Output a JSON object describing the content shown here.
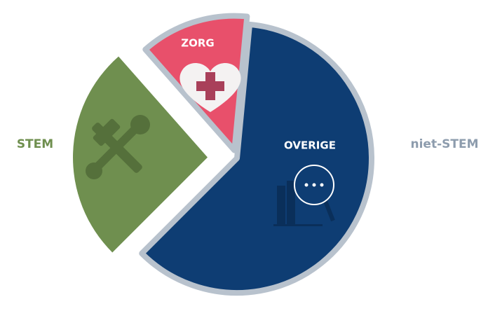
{
  "chart_data": {
    "type": "pie",
    "categories": [
      "STEM",
      "ZORG",
      "OVERIGE"
    ],
    "values": [
      26,
      13,
      61
    ],
    "colors": [
      "#6f8f4f",
      "#e8506b",
      "#0e3d73"
    ],
    "annotation": "niet-STEM",
    "annotation_color": "#8d9cad"
  }
}
